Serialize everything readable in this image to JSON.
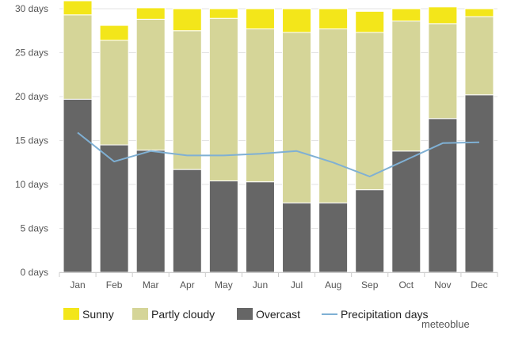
{
  "chart_data": {
    "type": "bar",
    "stacked": true,
    "categories": [
      "Jan",
      "Feb",
      "Mar",
      "Apr",
      "May",
      "Jun",
      "Jul",
      "Aug",
      "Sep",
      "Oct",
      "Nov",
      "Dec"
    ],
    "series": [
      {
        "name": "Overcast",
        "kind": "bar",
        "color": "#666666",
        "values": [
          19.7,
          14.5,
          13.9,
          11.7,
          10.4,
          10.3,
          7.9,
          7.9,
          9.4,
          13.8,
          17.5,
          20.2
        ]
      },
      {
        "name": "Partly cloudy",
        "kind": "bar",
        "color": "#d5d598",
        "values": [
          9.6,
          11.9,
          14.9,
          15.8,
          18.5,
          17.4,
          19.4,
          19.8,
          17.9,
          14.8,
          10.8,
          8.9
        ]
      },
      {
        "name": "Sunny",
        "kind": "bar",
        "color": "#f3e61a",
        "values": [
          1.6,
          1.7,
          1.3,
          2.5,
          1.1,
          2.3,
          2.7,
          2.3,
          2.4,
          1.4,
          1.9,
          0.9
        ]
      },
      {
        "name": "Precipitation days",
        "kind": "line",
        "color": "#7fb0d4",
        "values": [
          15.9,
          12.6,
          13.8,
          13.3,
          13.3,
          13.5,
          13.8,
          12.5,
          10.9,
          12.8,
          14.7,
          14.8
        ]
      }
    ],
    "y_ticks": [
      0,
      5,
      10,
      15,
      20,
      25,
      30
    ],
    "y_tick_suffix": " days",
    "ylim": [
      0,
      30
    ],
    "grid": true,
    "legend_position": "bottom",
    "legend_order": [
      "Sunny",
      "Partly cloudy",
      "Overcast",
      "Precipitation days"
    ],
    "credit": "meteoblue"
  }
}
